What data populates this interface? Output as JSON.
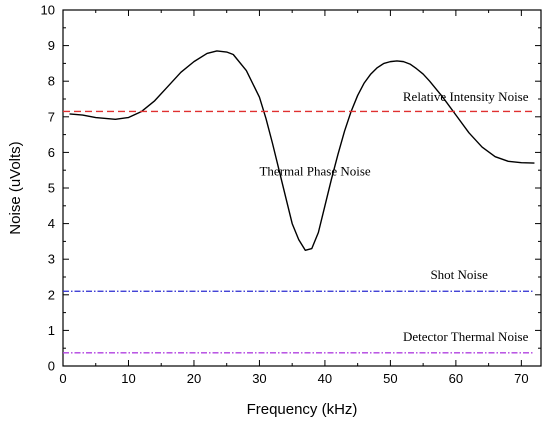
{
  "chart_data": {
    "type": "line",
    "xlabel": "Frequency (kHz)",
    "ylabel": "Noise (uVolts)",
    "xlim": [
      0,
      73
    ],
    "ylim": [
      0,
      10
    ],
    "xticks": [
      0,
      10,
      20,
      30,
      40,
      50,
      60,
      70
    ],
    "yticks": [
      0,
      1,
      2,
      3,
      4,
      5,
      6,
      7,
      8,
      9,
      10
    ],
    "grid": false,
    "legend": "none",
    "series": [
      {
        "name": "Thermal Phase Noise",
        "color": "#000000",
        "style": "solid",
        "x": [
          1,
          3,
          5,
          8,
          10,
          12,
          14,
          16,
          18,
          20,
          22,
          23.5,
          25,
          26,
          28,
          30,
          31,
          32,
          33,
          34,
          35,
          36,
          37,
          38,
          39,
          40,
          41,
          42,
          43,
          44,
          45,
          46,
          47,
          48,
          49,
          50,
          51,
          52,
          53,
          54,
          55,
          56,
          58,
          60,
          62,
          64,
          66,
          68,
          70,
          72
        ],
        "y": [
          7.08,
          7.05,
          6.98,
          6.93,
          6.98,
          7.15,
          7.45,
          7.85,
          8.25,
          8.55,
          8.78,
          8.85,
          8.82,
          8.75,
          8.3,
          7.55,
          6.95,
          6.25,
          5.5,
          4.75,
          4.0,
          3.55,
          3.25,
          3.3,
          3.75,
          4.5,
          5.25,
          5.95,
          6.6,
          7.15,
          7.6,
          7.95,
          8.2,
          8.38,
          8.5,
          8.55,
          8.57,
          8.55,
          8.48,
          8.35,
          8.2,
          8.0,
          7.55,
          7.05,
          6.55,
          6.15,
          5.88,
          5.75,
          5.71,
          5.7
        ]
      },
      {
        "name": "Relative Intensity Noise",
        "color": "#e03030",
        "style": "dashed",
        "x": [
          0,
          72
        ],
        "y": [
          7.15,
          7.15
        ]
      },
      {
        "name": "Shot Noise",
        "color": "#2a2ad0",
        "style": "dashdot",
        "x": [
          0,
          72
        ],
        "y": [
          2.1,
          2.1
        ]
      },
      {
        "name": "Detector Thermal Noise",
        "color": "#b040e0",
        "style": "dashdot",
        "x": [
          0,
          72
        ],
        "y": [
          0.37,
          0.37
        ]
      }
    ],
    "annotations": [
      {
        "text": "Relative Intensity Noise",
        "x": 61.5,
        "y": 7.45
      },
      {
        "text": "Thermal Phase Noise",
        "x": 38.5,
        "y": 5.35
      },
      {
        "text": "Shot Noise",
        "x": 60.5,
        "y": 2.45
      },
      {
        "text": "Detector Thermal Noise",
        "x": 61.5,
        "y": 0.7
      }
    ]
  }
}
